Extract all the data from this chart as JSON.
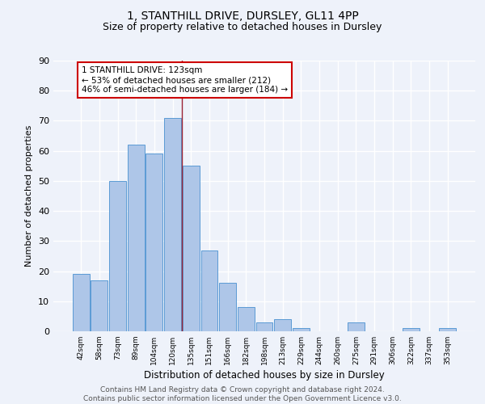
{
  "title1": "1, STANTHILL DRIVE, DURSLEY, GL11 4PP",
  "title2": "Size of property relative to detached houses in Dursley",
  "xlabel": "Distribution of detached houses by size in Dursley",
  "ylabel": "Number of detached properties",
  "categories": [
    "42sqm",
    "58sqm",
    "73sqm",
    "89sqm",
    "104sqm",
    "120sqm",
    "135sqm",
    "151sqm",
    "166sqm",
    "182sqm",
    "198sqm",
    "213sqm",
    "229sqm",
    "244sqm",
    "260sqm",
    "275sqm",
    "291sqm",
    "306sqm",
    "322sqm",
    "337sqm",
    "353sqm"
  ],
  "values": [
    19,
    17,
    50,
    62,
    59,
    71,
    55,
    27,
    16,
    8,
    3,
    4,
    1,
    0,
    0,
    3,
    0,
    0,
    1,
    0,
    1
  ],
  "bar_color": "#aec6e8",
  "bar_edge_color": "#5b9bd5",
  "ylim": [
    0,
    90
  ],
  "yticks": [
    0,
    10,
    20,
    30,
    40,
    50,
    60,
    70,
    80,
    90
  ],
  "vline_x": 5.5,
  "vline_color": "#9b2335",
  "annotation_text": "1 STANTHILL DRIVE: 123sqm\n← 53% of detached houses are smaller (212)\n46% of semi-detached houses are larger (184) →",
  "annotation_box_color": "#ffffff",
  "annotation_box_edge": "#cc0000",
  "footer": "Contains HM Land Registry data © Crown copyright and database right 2024.\nContains public sector information licensed under the Open Government Licence v3.0.",
  "bg_color": "#eef2fa",
  "grid_color": "#ffffff",
  "title1_fontsize": 10,
  "title2_fontsize": 9,
  "ylabel_fontsize": 8,
  "xlabel_fontsize": 8.5
}
